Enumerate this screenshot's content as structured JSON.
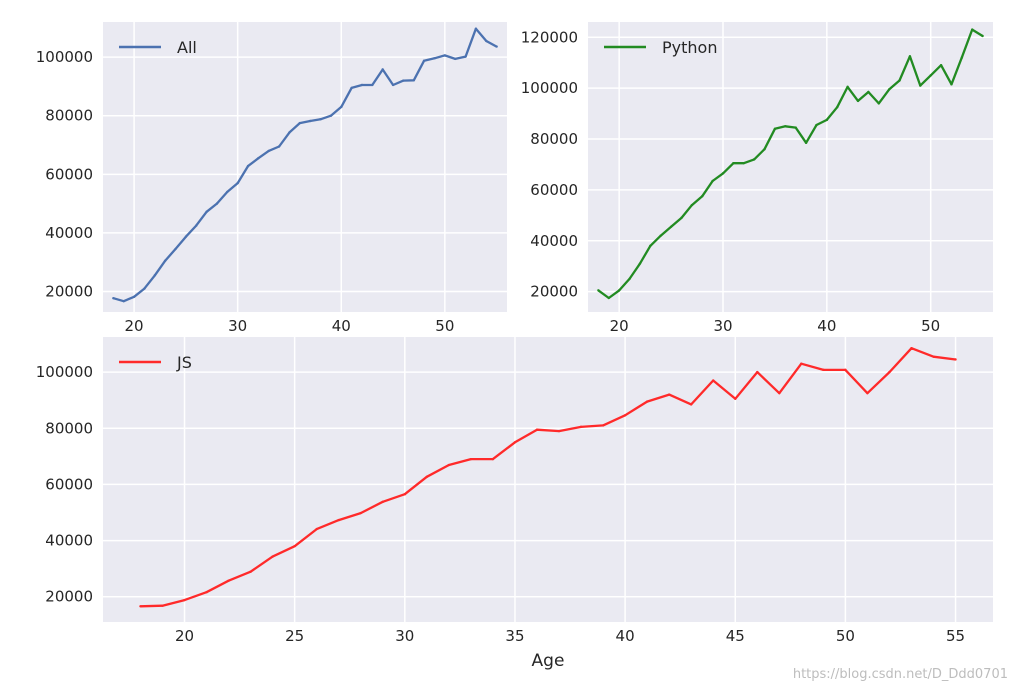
{
  "chart_data": [
    {
      "type": "line",
      "xlim": [
        17,
        56
      ],
      "ylim": [
        13000,
        112000
      ],
      "xticks": [
        20,
        30,
        40,
        50
      ],
      "yticks": [
        20000,
        40000,
        60000,
        80000,
        100000
      ],
      "legend_position": "top-left",
      "grid": true,
      "series": [
        {
          "name": "All",
          "color": "#4c72b0",
          "x": [
            18,
            19,
            20,
            21,
            22,
            23,
            24,
            25,
            26,
            27,
            28,
            29,
            30,
            31,
            32,
            33,
            34,
            35,
            36,
            37,
            38,
            39,
            40,
            41,
            42,
            43,
            44,
            45,
            46,
            47,
            48,
            49,
            50,
            51,
            52,
            53,
            54,
            55
          ],
          "values": [
            17700,
            16700,
            18200,
            21000,
            25500,
            30500,
            34500,
            38700,
            42500,
            47200,
            50000,
            54000,
            57000,
            62800,
            65500,
            68000,
            69500,
            74300,
            77500,
            78200,
            78800,
            80000,
            83000,
            89500,
            90500,
            90500,
            95800,
            90500,
            92000,
            92100,
            98800,
            99600,
            100600,
            99400,
            100200,
            109700,
            105500,
            103600
          ]
        }
      ]
    },
    {
      "type": "line",
      "xlim": [
        17,
        56
      ],
      "ylim": [
        12000,
        126000
      ],
      "xticks": [
        20,
        30,
        40,
        50
      ],
      "yticks": [
        20000,
        40000,
        60000,
        80000,
        100000,
        120000
      ],
      "legend_position": "top-left",
      "grid": true,
      "series": [
        {
          "name": "Python",
          "color": "#228b22",
          "x": [
            18,
            19,
            20,
            21,
            22,
            23,
            24,
            25,
            26,
            27,
            28,
            29,
            30,
            31,
            32,
            33,
            34,
            35,
            36,
            37,
            38,
            39,
            40,
            41,
            42,
            43,
            44,
            45,
            46,
            47,
            48,
            49,
            50,
            51,
            52,
            53,
            54,
            55
          ],
          "values": [
            20500,
            17500,
            20500,
            25000,
            31000,
            38000,
            42000,
            45500,
            49000,
            54000,
            57500,
            63500,
            66500,
            70500,
            70500,
            72000,
            76000,
            84000,
            85000,
            84500,
            78500,
            85500,
            87500,
            92500,
            100500,
            95000,
            98500,
            94000,
            99500,
            103000,
            112500,
            101000,
            105000,
            109000,
            101500,
            112000,
            123000,
            120500
          ]
        }
      ]
    },
    {
      "type": "line",
      "xlabel": "Age",
      "xlim": [
        16.3,
        56.7
      ],
      "ylim": [
        11000,
        112500
      ],
      "xticks": [
        20,
        25,
        30,
        35,
        40,
        45,
        50,
        55
      ],
      "yticks": [
        20000,
        40000,
        60000,
        80000,
        100000
      ],
      "legend_position": "top-left",
      "grid": true,
      "series": [
        {
          "name": "JS",
          "color": "#ff2a2a",
          "x": [
            18,
            19,
            20,
            21,
            22,
            23,
            24,
            25,
            26,
            27,
            28,
            29,
            30,
            31,
            32,
            33,
            34,
            35,
            36,
            37,
            38,
            39,
            40,
            41,
            42,
            43,
            44,
            45,
            46,
            47,
            48,
            49,
            50,
            51,
            52,
            53,
            54,
            55
          ],
          "values": [
            16600,
            16800,
            18800,
            21600,
            25700,
            28900,
            34300,
            38000,
            44100,
            47300,
            49800,
            53800,
            56500,
            62700,
            66900,
            69000,
            69000,
            75000,
            79500,
            79000,
            80500,
            81000,
            84600,
            89500,
            92000,
            88500,
            97000,
            90500,
            100000,
            92500,
            103000,
            100800,
            100800,
            92500,
            100000,
            108500,
            105500,
            104500
          ]
        }
      ]
    }
  ],
  "watermark": "https://blog.csdn.net/D_Ddd0701"
}
